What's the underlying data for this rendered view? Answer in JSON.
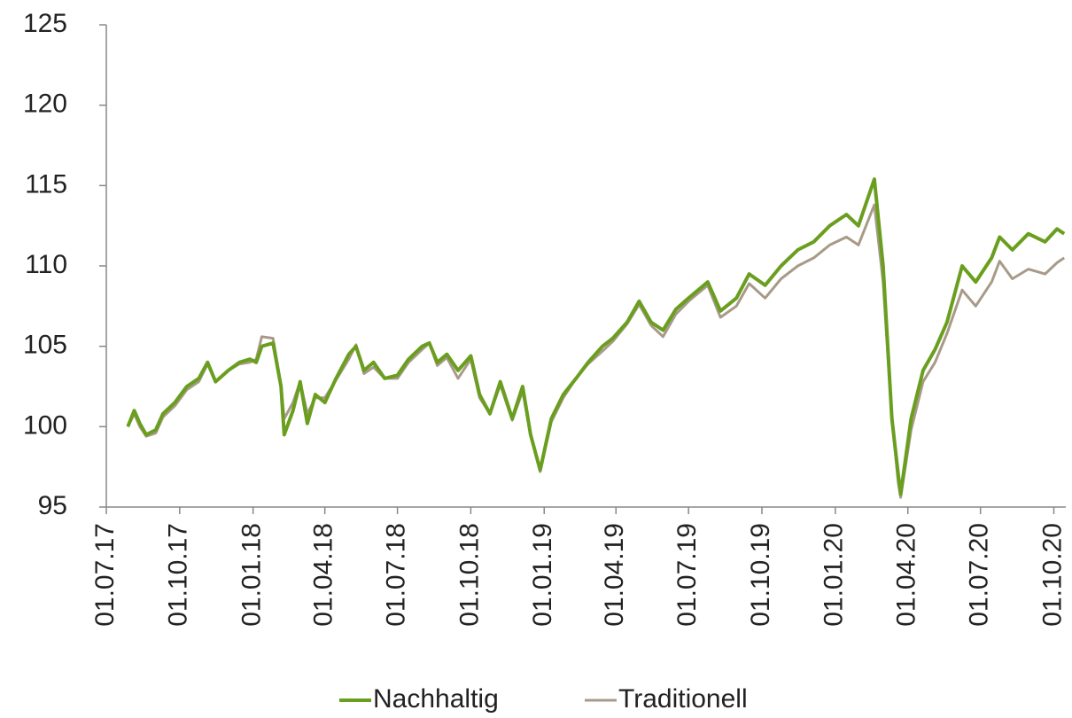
{
  "chart_data": {
    "type": "line",
    "x": [
      "2017-07-28",
      "2017-08-05",
      "2017-08-12",
      "2017-08-20",
      "2017-09-01",
      "2017-09-10",
      "2017-09-25",
      "2017-10-10",
      "2017-10-25",
      "2017-11-05",
      "2017-11-15",
      "2017-12-01",
      "2017-12-15",
      "2017-12-28",
      "2018-01-05",
      "2018-01-12",
      "2018-01-26",
      "2018-02-05",
      "2018-02-09",
      "2018-02-20",
      "2018-03-01",
      "2018-03-10",
      "2018-03-20",
      "2018-04-01",
      "2018-04-15",
      "2018-05-01",
      "2018-05-10",
      "2018-05-20",
      "2018-06-01",
      "2018-06-15",
      "2018-07-01",
      "2018-07-15",
      "2018-08-01",
      "2018-08-10",
      "2018-08-20",
      "2018-09-01",
      "2018-09-15",
      "2018-10-01",
      "2018-10-12",
      "2018-10-25",
      "2018-11-07",
      "2018-11-22",
      "2018-12-05",
      "2018-12-15",
      "2018-12-27",
      "2019-01-10",
      "2019-01-25",
      "2019-02-10",
      "2019-02-25",
      "2019-03-15",
      "2019-03-28",
      "2019-04-15",
      "2019-04-30",
      "2019-05-15",
      "2019-05-30",
      "2019-06-15",
      "2019-07-01",
      "2019-07-25",
      "2019-08-10",
      "2019-08-30",
      "2019-09-15",
      "2019-10-05",
      "2019-10-25",
      "2019-11-15",
      "2019-12-05",
      "2019-12-25",
      "2020-01-15",
      "2020-01-30",
      "2020-02-19",
      "2020-03-01",
      "2020-03-12",
      "2020-03-20",
      "2020-03-23",
      "2020-04-05",
      "2020-04-20",
      "2020-05-05",
      "2020-05-20",
      "2020-06-08",
      "2020-06-25",
      "2020-07-15",
      "2020-07-25",
      "2020-08-10",
      "2020-08-30",
      "2020-09-20",
      "2020-10-05",
      "2020-10-14"
    ],
    "series": [
      {
        "name": "Nachhaltig",
        "color": "#6a9e1f",
        "values": [
          100.0,
          101.0,
          100.2,
          99.5,
          99.8,
          100.8,
          101.5,
          102.5,
          103.0,
          104.0,
          102.8,
          103.5,
          104.0,
          104.2,
          104.0,
          105.0,
          105.2,
          102.5,
          99.5,
          101.0,
          102.8,
          100.2,
          102.0,
          101.5,
          103.0,
          104.5,
          105.0,
          103.5,
          104.0,
          103.0,
          103.2,
          104.2,
          105.0,
          105.2,
          104.0,
          104.5,
          103.5,
          104.4,
          102.0,
          100.8,
          102.8,
          100.5,
          102.5,
          99.5,
          97.3,
          100.5,
          102.0,
          103.0,
          104.0,
          105.0,
          105.5,
          106.5,
          107.8,
          106.5,
          106.0,
          107.3,
          108.0,
          109.0,
          107.2,
          108.0,
          109.5,
          108.8,
          110.0,
          111.0,
          111.5,
          112.5,
          113.2,
          112.5,
          115.4,
          110.0,
          100.5,
          97.0,
          95.8,
          100.5,
          103.5,
          104.8,
          106.5,
          110.0,
          109.0,
          110.5,
          111.8,
          111.0,
          112.0,
          111.5,
          112.3,
          112.0
        ]
      },
      {
        "name": "Traditionell",
        "color": "#a89a88",
        "values": [
          100.0,
          100.8,
          100.0,
          99.4,
          99.6,
          100.6,
          101.3,
          102.3,
          102.8,
          103.9,
          102.8,
          103.5,
          103.9,
          104.0,
          104.2,
          105.6,
          105.5,
          102.6,
          100.5,
          101.5,
          102.8,
          100.8,
          101.8,
          101.8,
          102.9,
          104.2,
          105.1,
          103.3,
          103.7,
          103.0,
          103.0,
          104.0,
          104.8,
          105.2,
          103.8,
          104.3,
          103.0,
          104.2,
          101.8,
          100.8,
          102.6,
          100.4,
          102.2,
          99.5,
          97.2,
          100.3,
          101.8,
          103.0,
          103.9,
          104.7,
          105.3,
          106.4,
          107.6,
          106.3,
          105.6,
          107.0,
          107.8,
          108.8,
          106.8,
          107.5,
          108.9,
          108.0,
          109.2,
          110.0,
          110.5,
          111.3,
          111.8,
          111.3,
          113.8,
          109.0,
          100.5,
          96.5,
          95.6,
          99.8,
          102.8,
          104.0,
          105.8,
          108.5,
          107.5,
          109.0,
          110.3,
          109.2,
          109.8,
          109.5,
          110.2,
          110.5
        ]
      }
    ],
    "xlim": [
      "2017-07-01",
      "2020-10-16"
    ],
    "xticks": [
      {
        "value": "2017-07-01",
        "label": "01.07.17"
      },
      {
        "value": "2017-10-01",
        "label": "01.10.17"
      },
      {
        "value": "2018-01-01",
        "label": "01.01.18"
      },
      {
        "value": "2018-04-01",
        "label": "01.04.18"
      },
      {
        "value": "2018-07-01",
        "label": "01.07.18"
      },
      {
        "value": "2018-10-01",
        "label": "01.10.18"
      },
      {
        "value": "2019-01-01",
        "label": "01.01.19"
      },
      {
        "value": "2019-04-01",
        "label": "01.04.19"
      },
      {
        "value": "2019-07-01",
        "label": "01.07.19"
      },
      {
        "value": "2019-10-01",
        "label": "01.10.19"
      },
      {
        "value": "2020-01-01",
        "label": "01.01.20"
      },
      {
        "value": "2020-04-01",
        "label": "01.04.20"
      },
      {
        "value": "2020-07-01",
        "label": "01.07.20"
      },
      {
        "value": "2020-10-01",
        "label": "01.10.20"
      }
    ],
    "ylim": [
      95,
      125
    ],
    "yticks": [
      95,
      100,
      105,
      110,
      115,
      120,
      125
    ],
    "legend": "bottom"
  }
}
